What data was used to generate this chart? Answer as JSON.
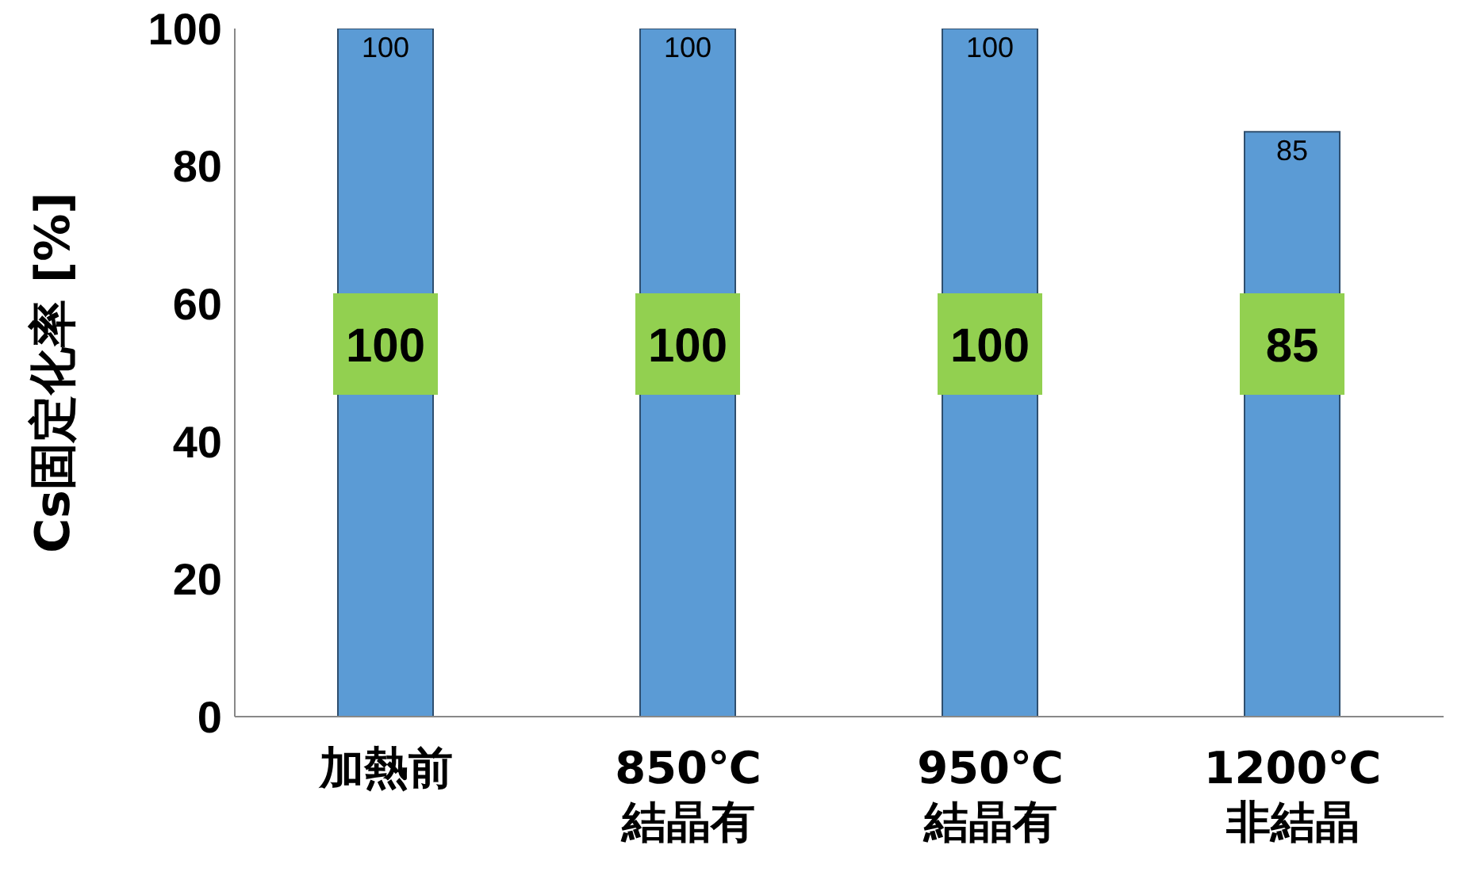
{
  "chart_data": {
    "type": "bar",
    "ylabel": "Cs固定化率 [%]",
    "categories": [
      "加熱前",
      "850℃\n結晶有",
      "950℃\n結晶有",
      "1200℃\n非結晶"
    ],
    "values": [
      100,
      100,
      100,
      85
    ],
    "color": "#5b9bd5",
    "ylim": [
      0,
      100
    ],
    "yticks": [
      0,
      20,
      40,
      60,
      80,
      100
    ],
    "grid": false,
    "data_labels": true,
    "annotations": [
      "100",
      "100",
      "100",
      "85"
    ]
  }
}
